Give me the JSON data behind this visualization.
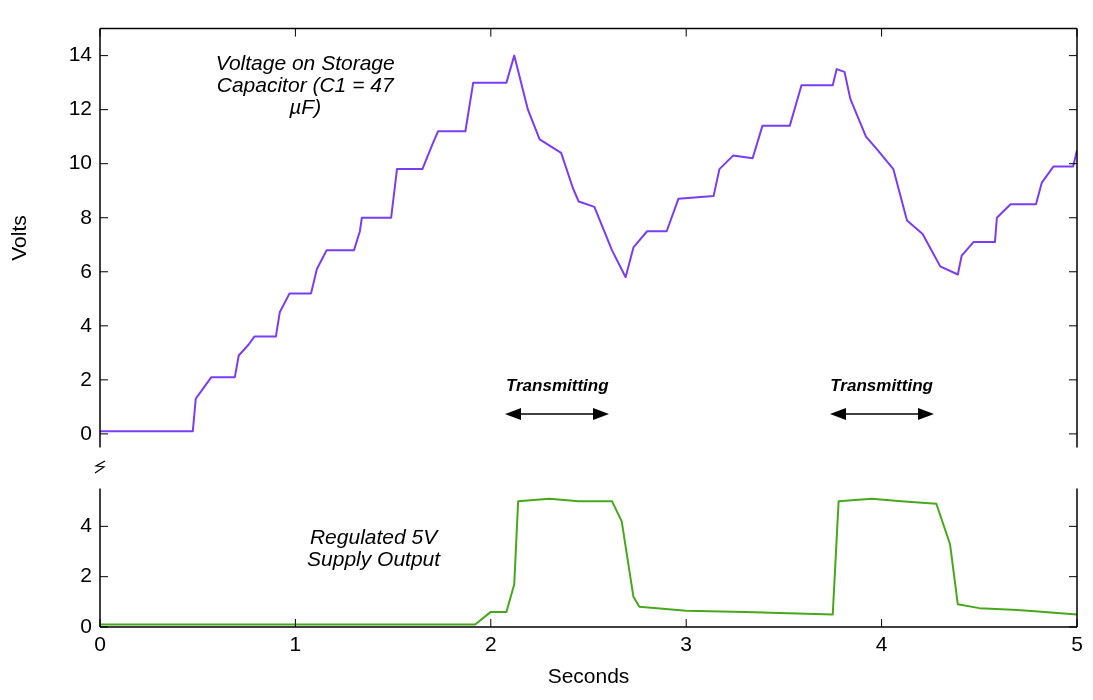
{
  "chart_data": [
    {
      "type": "line",
      "ylabel": "Volts",
      "xlim": [
        0,
        5
      ],
      "xticks": [
        0,
        1,
        2,
        3,
        4,
        5
      ],
      "ylim": [
        -0.5,
        15
      ],
      "yticks": [
        0,
        2,
        4,
        6,
        8,
        10,
        12,
        14
      ],
      "tick_labels": "y",
      "grid": false,
      "legend": false,
      "marker": "none",
      "annotations": [
        "Transmitting",
        "Transmitting"
      ],
      "series": [
        {
          "name": "Voltage on Storage Capacitor (C1 = 47 µF)",
          "color": "#7a3cf5",
          "x": [
            0,
            0.475,
            0.49,
            0.52,
            0.57,
            0.69,
            0.71,
            0.76,
            0.79,
            0.9,
            0.92,
            0.97,
            1.08,
            1.11,
            1.16,
            1.3,
            1.33,
            1.34,
            1.49,
            1.52,
            1.65,
            1.7,
            1.73,
            1.87,
            1.91,
            2.08,
            2.12,
            2.19,
            2.25,
            2.36,
            2.42,
            2.45,
            2.53,
            2.62,
            2.69,
            2.73,
            2.8,
            2.9,
            2.96,
            3.14,
            3.17,
            3.24,
            3.34,
            3.39,
            3.53,
            3.59,
            3.75,
            3.77,
            3.81,
            3.84,
            3.92,
            3.98,
            4.06,
            4.13,
            4.21,
            4.3,
            4.39,
            4.41,
            4.47,
            4.58,
            4.59,
            4.66,
            4.79,
            4.82,
            4.88,
            4.98,
            5.0
          ],
          "values": [
            0.1,
            0.1,
            1.3,
            1.6,
            2.1,
            2.1,
            2.9,
            3.3,
            3.6,
            3.6,
            4.5,
            5.2,
            5.2,
            6.1,
            6.8,
            6.8,
            7.5,
            8.0,
            8.0,
            9.8,
            9.8,
            10.7,
            11.2,
            11.2,
            13.0,
            13.0,
            14.0,
            12.0,
            10.9,
            10.4,
            9.1,
            8.6,
            8.4,
            6.8,
            5.8,
            6.9,
            7.5,
            7.5,
            8.7,
            8.8,
            9.8,
            10.3,
            10.2,
            11.4,
            11.4,
            12.9,
            12.9,
            13.5,
            13.4,
            12.4,
            11.0,
            10.5,
            9.8,
            7.9,
            7.4,
            6.2,
            5.9,
            6.6,
            7.1,
            7.1,
            8.0,
            8.5,
            8.5,
            9.3,
            9.9,
            9.9,
            10.5
          ]
        }
      ]
    },
    {
      "type": "line",
      "xlabel": "Seconds",
      "xlim": [
        0,
        5
      ],
      "xticks": [
        0,
        1,
        2,
        3,
        4,
        5
      ],
      "ylim": [
        0,
        5.5
      ],
      "yticks": [
        0,
        2,
        4
      ],
      "grid": false,
      "legend": false,
      "marker": "none",
      "series": [
        {
          "name": "Regulated 5V Supply Output",
          "color": "#47a81c",
          "x": [
            0,
            1.92,
            2.0,
            2.08,
            2.12,
            2.14,
            2.3,
            2.45,
            2.62,
            2.67,
            2.73,
            2.76,
            3.0,
            3.3,
            3.75,
            3.78,
            3.95,
            4.1,
            4.28,
            4.35,
            4.39,
            4.5,
            4.75,
            5.0
          ],
          "values": [
            0.1,
            0.1,
            0.6,
            0.6,
            1.7,
            5.0,
            5.1,
            5.0,
            5.0,
            4.2,
            1.2,
            0.8,
            0.65,
            0.6,
            0.5,
            5.0,
            5.1,
            5.0,
            4.9,
            3.3,
            0.9,
            0.75,
            0.65,
            0.5
          ]
        }
      ]
    }
  ]
}
